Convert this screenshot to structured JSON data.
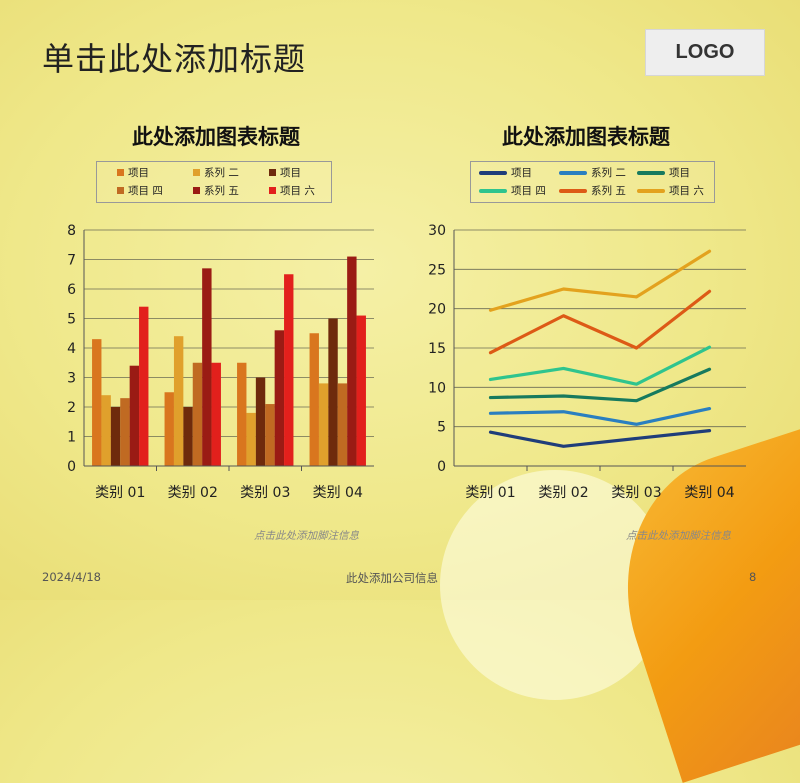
{
  "slide": {
    "title": "单击此处添加标题",
    "logo": "LOGO",
    "date": "2024/4/18",
    "company": "此处添加公司信息",
    "page_number": "8"
  },
  "footnotes": [
    "点击此处添加脚注信息",
    "点击此处添加脚注信息"
  ],
  "chart_data": [
    {
      "type": "bar",
      "title": "此处添加图表标题",
      "categories": [
        "类别 01",
        "类别 02",
        "类别 03",
        "类别 04"
      ],
      "ylim": [
        0,
        8
      ],
      "yticks": [
        0,
        1,
        2,
        3,
        4,
        5,
        6,
        7,
        8
      ],
      "grid": true,
      "legend_position": "top",
      "series": [
        {
          "name": "项目",
          "color": "#d9761e",
          "values": [
            4.3,
            2.5,
            3.5,
            4.5
          ]
        },
        {
          "name": "系列 二",
          "color": "#e0a02c",
          "values": [
            2.4,
            4.4,
            1.8,
            2.8
          ]
        },
        {
          "name": "项目",
          "color": "#6e2a0c",
          "values": [
            2.0,
            2.0,
            3.0,
            5.0
          ]
        },
        {
          "name": "项目 四",
          "color": "#c06a22",
          "values": [
            2.3,
            3.5,
            2.1,
            2.8
          ]
        },
        {
          "name": "系列 五",
          "color": "#9a1b14",
          "values": [
            3.4,
            6.7,
            4.6,
            7.1
          ]
        },
        {
          "name": "项目 六",
          "color": "#e2201c",
          "values": [
            5.4,
            3.5,
            6.5,
            5.1
          ]
        }
      ]
    },
    {
      "type": "line",
      "title": "此处添加图表标题",
      "categories": [
        "类别 01",
        "类别 02",
        "类别 03",
        "类别 04"
      ],
      "ylim": [
        0,
        30
      ],
      "yticks": [
        0,
        5,
        10,
        15,
        20,
        25,
        30
      ],
      "grid": true,
      "legend_position": "top",
      "series": [
        {
          "name": "项目",
          "color": "#1f3d7a",
          "values": [
            4.3,
            2.5,
            3.5,
            4.5
          ]
        },
        {
          "name": "系列 二",
          "color": "#2a7fc0",
          "values": [
            6.7,
            6.9,
            5.3,
            7.3
          ]
        },
        {
          "name": "项目",
          "color": "#177a5e",
          "values": [
            8.7,
            8.9,
            8.3,
            12.3
          ]
        },
        {
          "name": "项目 四",
          "color": "#2fc48e",
          "values": [
            11.0,
            12.4,
            10.4,
            15.1
          ]
        },
        {
          "name": "系列 五",
          "color": "#dd5a16",
          "values": [
            14.4,
            19.1,
            15.0,
            22.2
          ]
        },
        {
          "name": "项目 六",
          "color": "#e3a21e",
          "values": [
            19.8,
            22.5,
            21.5,
            27.3
          ]
        }
      ]
    }
  ]
}
